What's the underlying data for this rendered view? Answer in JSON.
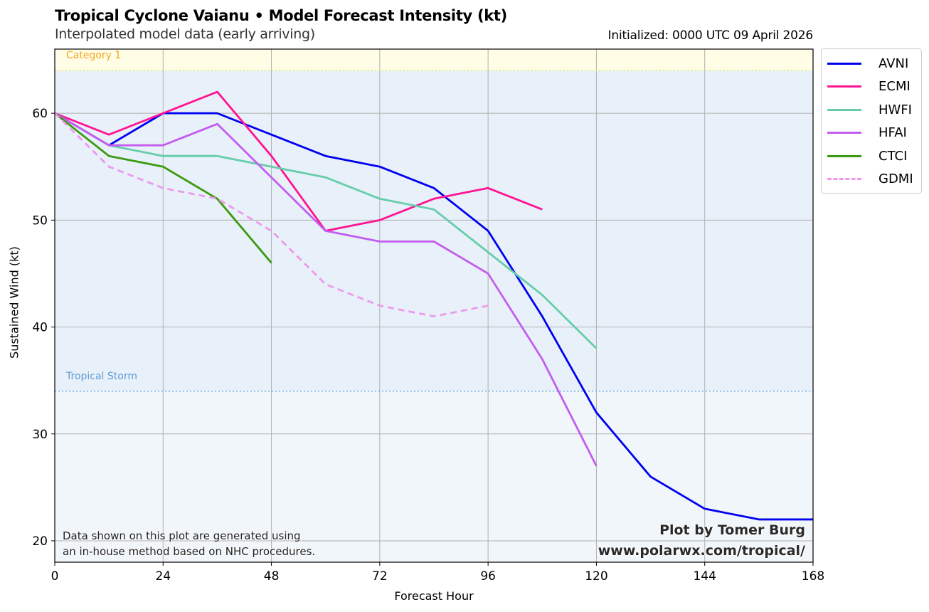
{
  "header": {
    "title": "Tropical Cyclone Vaianu • Model Forecast Intensity (kt)",
    "subtitle": "Interpolated model data (early arriving)",
    "initialized": "Initialized: 0000 UTC 09 April 2026"
  },
  "annotations": {
    "disclaimer_line1": "Data shown on this plot are generated using",
    "disclaimer_line2": "an in-house method based on NHC procedures.",
    "credit_line1": "Plot by Tomer Burg",
    "credit_line2": "www.polarwx.com/tropical/"
  },
  "chart_data": {
    "type": "line",
    "title": "Tropical Cyclone Vaianu • Model Forecast Intensity (kt)",
    "subtitle": "Interpolated model data (early arriving)",
    "xlabel": "Forecast Hour",
    "ylabel": "Sustained Wind (kt)",
    "xlim": [
      0,
      168
    ],
    "ylim": [
      18,
      66
    ],
    "xticks": [
      0,
      24,
      48,
      72,
      96,
      120,
      144,
      168
    ],
    "yticks": [
      20,
      30,
      40,
      50,
      60
    ],
    "grid": true,
    "legend_position": "outside-top-right",
    "thresholds": [
      {
        "label": "Category 1",
        "value": 64,
        "color": "#f5a623",
        "line_color": "#e8e86a",
        "band_color": "#fffde6"
      },
      {
        "label": "Tropical Storm",
        "value": 34,
        "color": "#5b9bd5",
        "line_color": "#7ab3e0",
        "band_color": "#e8f1f9"
      }
    ],
    "below_ts_band_color": "#f1f6fb",
    "series": [
      {
        "name": "AVNI",
        "color": "#0000ee",
        "dashed": false,
        "x": [
          0,
          12,
          24,
          36,
          48,
          60,
          72,
          84,
          96,
          108,
          120,
          132,
          144,
          156,
          168
        ],
        "y": [
          60,
          57,
          60,
          60,
          58,
          56,
          55,
          53,
          49,
          41,
          32,
          26,
          23,
          22,
          22
        ]
      },
      {
        "name": "ECMI",
        "color": "#ff1493",
        "dashed": false,
        "x": [
          0,
          12,
          24,
          36,
          48,
          60,
          72,
          84,
          96,
          108
        ],
        "y": [
          60,
          58,
          60,
          62,
          56,
          49,
          50,
          52,
          53,
          51
        ]
      },
      {
        "name": "HWFI",
        "color": "#66cdaa",
        "dashed": false,
        "x": [
          0,
          12,
          24,
          36,
          48,
          60,
          72,
          84,
          96,
          108,
          120
        ],
        "y": [
          60,
          57,
          56,
          56,
          55,
          54,
          52,
          51,
          47,
          43,
          38
        ]
      },
      {
        "name": "HFAI",
        "color": "#c45cf0",
        "dashed": false,
        "x": [
          0,
          12,
          24,
          36,
          48,
          60,
          72,
          84,
          96,
          108,
          120
        ],
        "y": [
          60,
          57,
          57,
          59,
          54,
          49,
          48,
          48,
          45,
          37,
          27
        ]
      },
      {
        "name": "CTCI",
        "color": "#3c9a10",
        "dashed": false,
        "x": [
          0,
          12,
          24,
          36,
          48
        ],
        "y": [
          60,
          56,
          55,
          52,
          46
        ]
      },
      {
        "name": "GDMI",
        "color": "#ee99ee",
        "dashed": true,
        "x": [
          0,
          12,
          24,
          36,
          48,
          60,
          72,
          84,
          96
        ],
        "y": [
          60,
          55,
          53,
          52,
          49,
          44,
          42,
          41,
          42
        ]
      }
    ]
  }
}
